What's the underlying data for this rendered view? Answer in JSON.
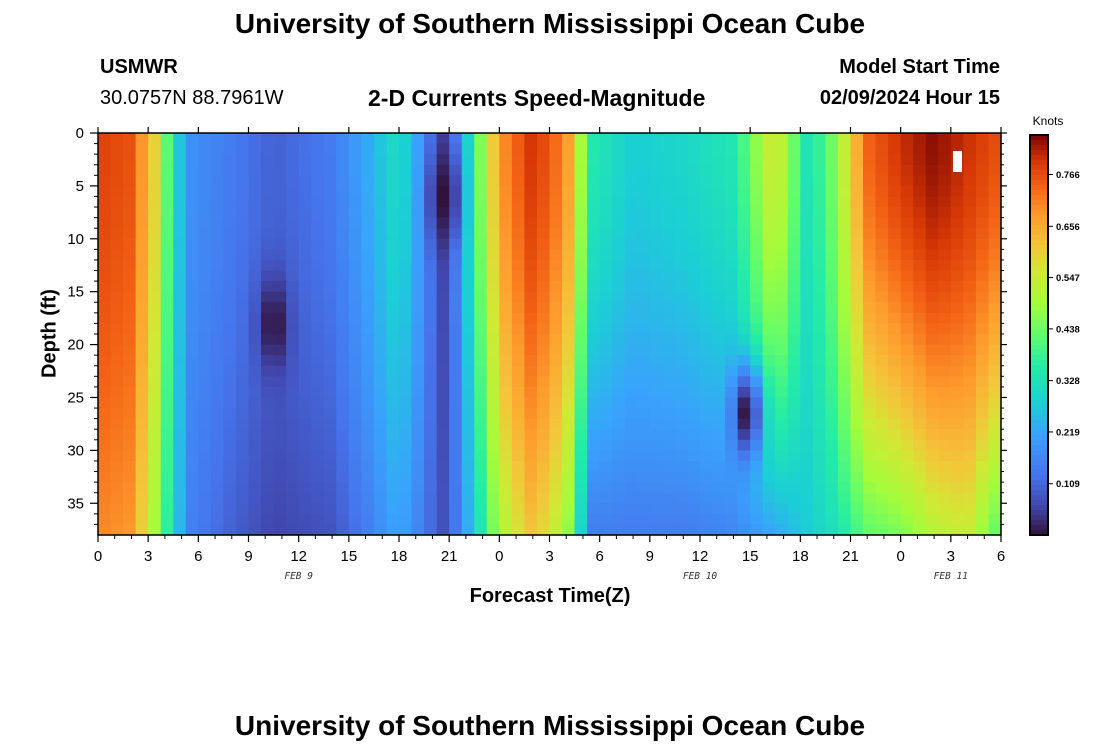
{
  "header": {
    "title": "University of Southern Mississippi Ocean Cube",
    "station": "USMWR",
    "coords": "30.0757N  88.7961W",
    "subtitle": "2-D Currents Speed-Magnitude",
    "model_label": "Model Start Time",
    "model_time": "02/09/2024 Hour 15"
  },
  "footer": {
    "title": "University of Southern Mississippi Ocean Cube"
  },
  "chart_data": {
    "type": "heatmap",
    "title": "2-D Currents Speed-Magnitude",
    "xlabel": "Forecast Time(Z)",
    "ylabel": "Depth (ft)",
    "x_tick_labels": [
      "0",
      "3",
      "6",
      "9",
      "12",
      "15",
      "18",
      "21",
      "0",
      "3",
      "6",
      "9",
      "12",
      "15",
      "18",
      "21",
      "0",
      "3",
      "6"
    ],
    "x_range_hours": [
      0,
      54
    ],
    "date_labels": [
      {
        "label": "FEB 9",
        "hour": 12
      },
      {
        "label": "FEB 10",
        "hour": 36
      },
      {
        "label": "FEB 11",
        "hour": 51
      }
    ],
    "y_tick_labels": [
      "0",
      "5",
      "10",
      "15",
      "20",
      "25",
      "30",
      "35"
    ],
    "y_ticks": [
      0,
      5,
      10,
      15,
      20,
      25,
      30,
      35
    ],
    "ylim": [
      0,
      38
    ],
    "y_inverted": true,
    "colorbar": {
      "title": "Knots",
      "min": 0.0,
      "max": 0.85,
      "tick_labels": [
        "0.766",
        "0.656",
        "0.547",
        "0.438",
        "0.328",
        "0.219",
        "0.109"
      ],
      "tick_values": [
        0.766,
        0.656,
        0.547,
        0.438,
        0.328,
        0.219,
        0.109
      ]
    },
    "speed_profile_by_hour": [
      {
        "hour": 0,
        "surface": 0.78,
        "bottom": 0.7
      },
      {
        "hour": 2,
        "surface": 0.76,
        "bottom": 0.68
      },
      {
        "hour": 3.5,
        "surface": 0.58,
        "bottom": 0.48
      },
      {
        "hour": 4.5,
        "surface": 0.32,
        "bottom": 0.3
      },
      {
        "hour": 5.5,
        "surface": 0.18,
        "bottom": 0.15
      },
      {
        "hour": 8,
        "surface": 0.14,
        "bottom": 0.1
      },
      {
        "hour": 10.5,
        "surface": 0.1,
        "bottom": 0.06
      },
      {
        "hour": 14,
        "surface": 0.14,
        "bottom": 0.08
      },
      {
        "hour": 16,
        "surface": 0.22,
        "bottom": 0.14
      },
      {
        "hour": 18,
        "surface": 0.32,
        "bottom": 0.22
      },
      {
        "hour": 19.5,
        "surface": 0.18,
        "bottom": 0.14
      },
      {
        "hour": 20.5,
        "surface": 0.05,
        "bottom": 0.07
      },
      {
        "hour": 21.5,
        "surface": 0.16,
        "bottom": 0.14
      },
      {
        "hour": 22.5,
        "surface": 0.38,
        "bottom": 0.28
      },
      {
        "hour": 24,
        "surface": 0.68,
        "bottom": 0.5
      },
      {
        "hour": 26,
        "surface": 0.8,
        "bottom": 0.62
      },
      {
        "hour": 28,
        "surface": 0.7,
        "bottom": 0.5
      },
      {
        "hour": 29.5,
        "surface": 0.35,
        "bottom": 0.14
      },
      {
        "hour": 32,
        "surface": 0.28,
        "bottom": 0.14
      },
      {
        "hour": 35,
        "surface": 0.3,
        "bottom": 0.14
      },
      {
        "hour": 38,
        "surface": 0.34,
        "bottom": 0.16
      },
      {
        "hour": 40.5,
        "surface": 0.58,
        "bottom": 0.22
      },
      {
        "hour": 42.5,
        "surface": 0.32,
        "bottom": 0.28
      },
      {
        "hour": 44,
        "surface": 0.45,
        "bottom": 0.32
      },
      {
        "hour": 46,
        "surface": 0.74,
        "bottom": 0.42
      },
      {
        "hour": 48,
        "surface": 0.8,
        "bottom": 0.45
      },
      {
        "hour": 50,
        "surface": 0.84,
        "bottom": 0.52
      },
      {
        "hour": 52,
        "surface": 0.8,
        "bottom": 0.55
      },
      {
        "hour": 54,
        "surface": 0.76,
        "bottom": 0.4
      }
    ],
    "minima": [
      {
        "hour": 10.5,
        "depth": 18,
        "value": 0.0
      },
      {
        "hour": 20.7,
        "depth": 6,
        "value": 0.0
      },
      {
        "hour": 38.8,
        "depth": 26.5,
        "value": 0.0
      }
    ]
  }
}
